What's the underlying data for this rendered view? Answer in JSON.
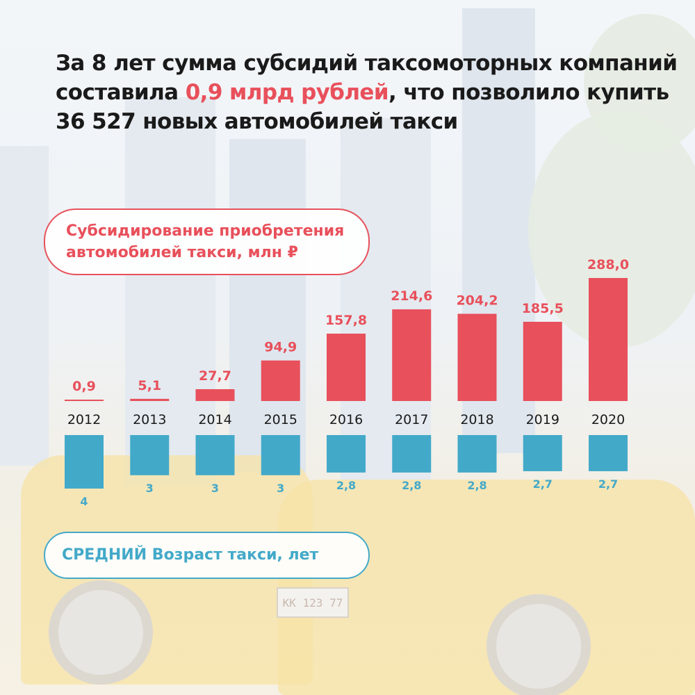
{
  "headline": {
    "part1": "За 8 лет сумма субсидий таксомоторных компаний составила ",
    "highlight": "0,9 млрд рублей",
    "part2": ", что позволило купить 36 527 новых автомобилей такси"
  },
  "legend": {
    "subsidy_line1": "Субсидирование приобретения",
    "subsidy_line2": "автомобилей такси, млн ₽",
    "age_highlight": "СРЕДНИЙ",
    "age_rest": " Возраст такси, лет"
  },
  "plate_text": "КК 123 77",
  "colors": {
    "subsidy": "#e8505b",
    "age": "#43a9c9",
    "year_text": "#1a1a1a"
  },
  "chart_data": {
    "type": "bar",
    "categories": [
      "2012",
      "2013",
      "2014",
      "2015",
      "2016",
      "2017",
      "2018",
      "2019",
      "2020"
    ],
    "series": [
      {
        "name": "Субсидирование приобретения автомобилей такси, млн ₽",
        "values": [
          0.9,
          5.1,
          27.7,
          94.9,
          157.8,
          214.6,
          204.2,
          185.5,
          288.0
        ],
        "labels": [
          "0,9",
          "5,1",
          "27,7",
          "94,9",
          "157,8",
          "214,6",
          "204,2",
          "185,5",
          "288,0"
        ]
      },
      {
        "name": "СРЕДНИЙ Возраст такси, лет",
        "values": [
          4,
          3,
          3,
          3,
          2.8,
          2.8,
          2.8,
          2.7,
          2.7
        ],
        "labels": [
          "4",
          "3",
          "3",
          "3",
          "2,8",
          "2,8",
          "2,8",
          "2,7",
          "2,7"
        ]
      }
    ]
  }
}
